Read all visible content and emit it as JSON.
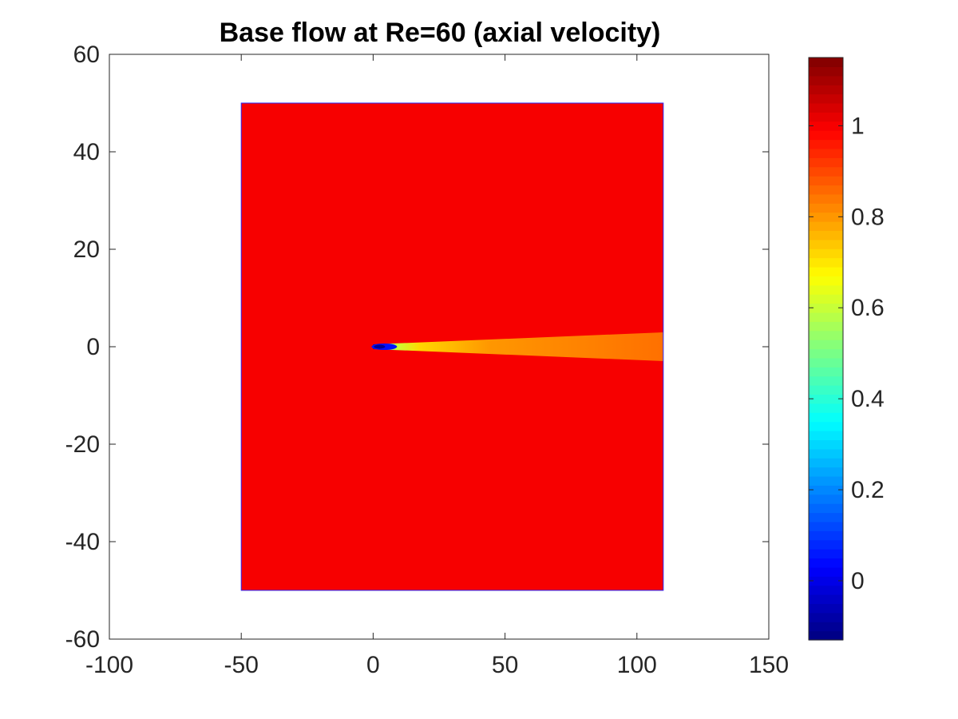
{
  "chart_data": {
    "type": "heatmap",
    "title": "Base flow at Re=60 (axial velocity)",
    "xlabel": "",
    "ylabel": "",
    "xlim": [
      -100,
      150
    ],
    "ylim": [
      -60,
      60
    ],
    "x_ticks": [
      "-100",
      "-50",
      "0",
      "50",
      "100",
      "150"
    ],
    "y_ticks": [
      "60",
      "40",
      "20",
      "0",
      "-20",
      "-40",
      "-60"
    ],
    "domain": {
      "x": [
        -50,
        110
      ],
      "y": [
        -50,
        50
      ]
    },
    "freestream_value": 1.0,
    "wake": {
      "x_start": 0,
      "x_end": 110,
      "y_center": 0,
      "min_value": -0.1,
      "far_value": 0.85
    },
    "colorbar": {
      "colormap": "jet",
      "range": [
        -0.13,
        1.15
      ],
      "ticks": [
        0,
        0.2,
        0.4,
        0.6,
        0.8,
        1
      ],
      "tick_labels": [
        "0",
        "0.2",
        "0.4",
        "0.6",
        "0.8",
        "1"
      ]
    },
    "grid": false
  }
}
